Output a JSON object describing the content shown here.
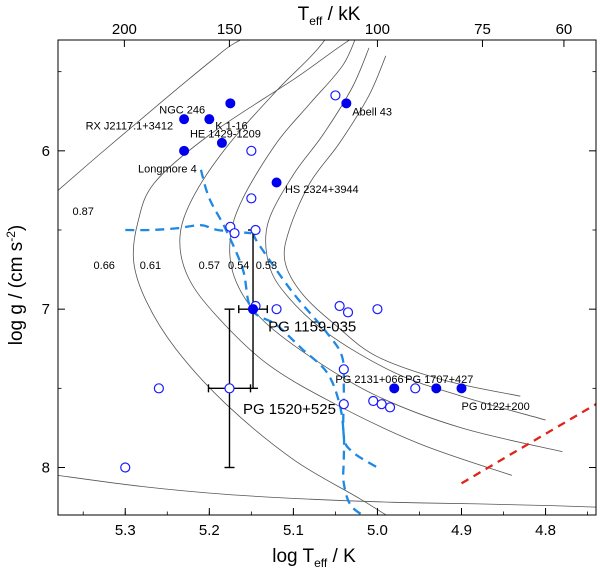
{
  "chart_data": {
    "type": "scatter",
    "title": "",
    "xlabel": "log T",
    "xlabel_sub": "eff",
    "xlabel_unit": " / K",
    "ylabel": "log g / (cm s",
    "ylabel_sup": "-2",
    "ylabel_close": ")",
    "top_axis_label": "T",
    "top_axis_sub": "eff",
    "top_axis_unit": " / kK",
    "xlim": [
      5.38,
      4.74
    ],
    "ylim": [
      5.3,
      8.3
    ],
    "x_ticks": [
      5.3,
      5.2,
      5.1,
      5.0,
      4.9,
      4.8
    ],
    "x_tick_labels": [
      "5.3",
      "5.2",
      "5.1",
      "5.0",
      "4.9",
      "4.8"
    ],
    "y_ticks": [
      6,
      7,
      8
    ],
    "y_tick_labels": [
      "6",
      "7",
      "8"
    ],
    "top_ticks_kK": [
      200,
      150,
      100,
      75,
      60
    ],
    "top_tick_labels": [
      "200",
      "150",
      "100",
      "75",
      "60"
    ],
    "tracks": [
      {
        "label": "0.87",
        "x": [
          5.38,
          5.33,
          5.27,
          5.225,
          5.195,
          5.17,
          5.13
        ],
        "y": [
          6.25,
          6.02,
          5.75,
          5.55,
          5.42,
          5.32,
          5.22
        ]
      },
      {
        "label": "0.66",
        "x": [
          4.96,
          5.02,
          5.1,
          5.18,
          5.24,
          5.275,
          5.29,
          5.285,
          5.265,
          5.2,
          5.1,
          5.0,
          4.88,
          4.8,
          4.74
        ],
        "y": [
          8.4,
          8.2,
          7.95,
          7.6,
          7.25,
          6.95,
          6.7,
          6.45,
          6.2,
          5.9,
          5.55,
          5.2,
          5.0,
          4.9,
          4.85
        ]
      },
      {
        "label": "0.61",
        "x": [
          4.84,
          4.95,
          5.05,
          5.13,
          5.19,
          5.225,
          5.235,
          5.22,
          5.18,
          5.12,
          5.07,
          5.03
        ],
        "y": [
          8.05,
          7.85,
          7.6,
          7.35,
          7.05,
          6.8,
          6.55,
          6.3,
          5.98,
          5.62,
          5.35,
          5.05
        ]
      },
      {
        "label": "0.57",
        "x": [
          4.78,
          4.9,
          5.0,
          5.08,
          5.14,
          5.17,
          5.175,
          5.16,
          5.12,
          5.08,
          5.04,
          5.02
        ],
        "y": [
          7.9,
          7.75,
          7.55,
          7.3,
          7.05,
          6.8,
          6.55,
          6.3,
          5.95,
          5.7,
          5.45,
          5.2
        ]
      },
      {
        "label": "0.54",
        "x": [
          4.8,
          4.9,
          4.98,
          5.06,
          5.11,
          5.13,
          5.13,
          5.1,
          5.065,
          5.03,
          5.01
        ],
        "y": [
          7.7,
          7.55,
          7.4,
          7.15,
          6.9,
          6.7,
          6.45,
          6.15,
          5.9,
          5.6,
          5.35
        ]
      },
      {
        "label": "0.53",
        "x": [
          4.83,
          4.92,
          5.0,
          5.05,
          5.09,
          5.11,
          5.105,
          5.08,
          5.045,
          5.01,
          4.99
        ],
        "y": [
          7.55,
          7.45,
          7.3,
          7.1,
          6.9,
          6.7,
          6.5,
          6.2,
          5.95,
          5.65,
          5.4
        ]
      },
      {
        "label": "",
        "x": [
          5.38,
          5.28,
          5.18,
          5.08,
          4.98,
          4.88,
          4.8,
          4.74
        ],
        "y": [
          8.05,
          8.12,
          8.17,
          8.2,
          8.22,
          8.23,
          8.24,
          8.25
        ]
      }
    ],
    "track_labels": [
      {
        "text": "0.87",
        "x": 5.35,
        "y": 6.38
      },
      {
        "text": "0.66",
        "x": 5.325,
        "y": 6.72
      },
      {
        "text": "0.61",
        "x": 5.27,
        "y": 6.72
      },
      {
        "text": "0.57",
        "x": 5.2,
        "y": 6.72
      },
      {
        "text": "0.54",
        "x": 5.165,
        "y": 6.72
      },
      {
        "text": "0.53",
        "x": 5.132,
        "y": 6.72
      }
    ],
    "named_stars": [
      {
        "name": "NGC 246",
        "x": 5.175,
        "y": 5.7,
        "lx": 5.205,
        "ly": 5.74,
        "anchor": "end"
      },
      {
        "name": "RX J2117.1+3412",
        "x": 5.23,
        "y": 5.8,
        "lx": 5.243,
        "ly": 5.84,
        "anchor": "end"
      },
      {
        "name": "K 1-16",
        "x": 5.2,
        "y": 5.8,
        "lx": 5.193,
        "ly": 5.84,
        "anchor": "start"
      },
      {
        "name": "HE 1429-1209",
        "x": 5.185,
        "y": 5.95,
        "lx": 5.223,
        "ly": 5.89,
        "anchor": "start"
      },
      {
        "name": "Longmore 4",
        "x": 5.23,
        "y": 6.0,
        "lx": 5.215,
        "ly": 6.11,
        "anchor": "end"
      },
      {
        "name": "Abell 43",
        "x": 5.037,
        "y": 5.7,
        "lx": 5.03,
        "ly": 5.75,
        "anchor": "start"
      },
      {
        "name": "HS 2324+3944",
        "x": 5.12,
        "y": 6.2,
        "lx": 5.11,
        "ly": 6.24,
        "anchor": "start"
      },
      {
        "name": "PG 2131+066",
        "x": 4.98,
        "y": 7.5,
        "lx": 5.05,
        "ly": 7.44,
        "anchor": "start"
      },
      {
        "name": "PG 1707+427",
        "x": 4.93,
        "y": 7.5,
        "lx": 4.967,
        "ly": 7.44,
        "anchor": "start"
      },
      {
        "name": "PG 0122+200",
        "x": 4.9,
        "y": 7.5,
        "lx": 4.9,
        "ly": 7.61,
        "anchor": "start"
      }
    ],
    "open_stars": [
      {
        "x": 5.05,
        "y": 5.65
      },
      {
        "x": 5.15,
        "y": 6.0
      },
      {
        "x": 5.15,
        "y": 6.3
      },
      {
        "x": 5.175,
        "y": 6.48
      },
      {
        "x": 5.17,
        "y": 6.52
      },
      {
        "x": 5.145,
        "y": 6.5
      },
      {
        "x": 5.145,
        "y": 6.98
      },
      {
        "x": 5.12,
        "y": 7.0
      },
      {
        "x": 5.045,
        "y": 6.98
      },
      {
        "x": 5.035,
        "y": 7.02
      },
      {
        "x": 5.0,
        "y": 7.0
      },
      {
        "x": 5.04,
        "y": 7.38
      },
      {
        "x": 5.26,
        "y": 7.5
      },
      {
        "x": 4.955,
        "y": 7.5
      },
      {
        "x": 5.04,
        "y": 7.6
      },
      {
        "x": 5.005,
        "y": 7.58
      },
      {
        "x": 4.995,
        "y": 7.6
      },
      {
        "x": 4.985,
        "y": 7.62
      },
      {
        "x": 5.3,
        "y": 8.0
      }
    ],
    "highlighted": [
      {
        "name": "PG 1159-035",
        "x": 5.148,
        "y": 7.0,
        "xerr": 0.017,
        "yerr_low": 0.5,
        "yerr_high": 0.5,
        "lx": 5.13,
        "ly": 7.11
      },
      {
        "name": "PG 1520+525",
        "x": 5.176,
        "y": 7.5,
        "xerr": 0.025,
        "yerr_low": 0.5,
        "yerr_high": 0.5,
        "lx": 5.16,
        "ly": 7.63
      }
    ],
    "blue_dashed": [
      {
        "x": [
          5.3,
          5.27,
          5.24,
          5.21,
          5.19,
          5.15
        ],
        "y": [
          6.5,
          6.5,
          6.49,
          6.47,
          6.5,
          6.52
        ]
      },
      {
        "x": [
          5.21,
          5.2,
          5.18,
          5.16,
          5.15,
          5.12,
          5.09,
          5.06,
          5.045,
          5.04,
          5.04,
          5.04,
          5.03,
          5.0
        ],
        "y": [
          6.12,
          6.3,
          6.5,
          6.75,
          7.0,
          7.1,
          7.25,
          7.4,
          7.6,
          7.8,
          7.95,
          8.1,
          8.25,
          8.35
        ]
      },
      {
        "x": [
          5.148,
          5.14,
          5.1,
          5.06,
          5.042,
          5.04,
          5.04,
          5.03,
          5.0
        ],
        "y": [
          6.52,
          6.6,
          6.9,
          7.15,
          7.3,
          7.5,
          7.8,
          7.9,
          8.0
        ]
      }
    ],
    "red_dashed": {
      "x": [
        4.9,
        4.74
      ],
      "y": [
        8.1,
        7.6
      ]
    }
  }
}
